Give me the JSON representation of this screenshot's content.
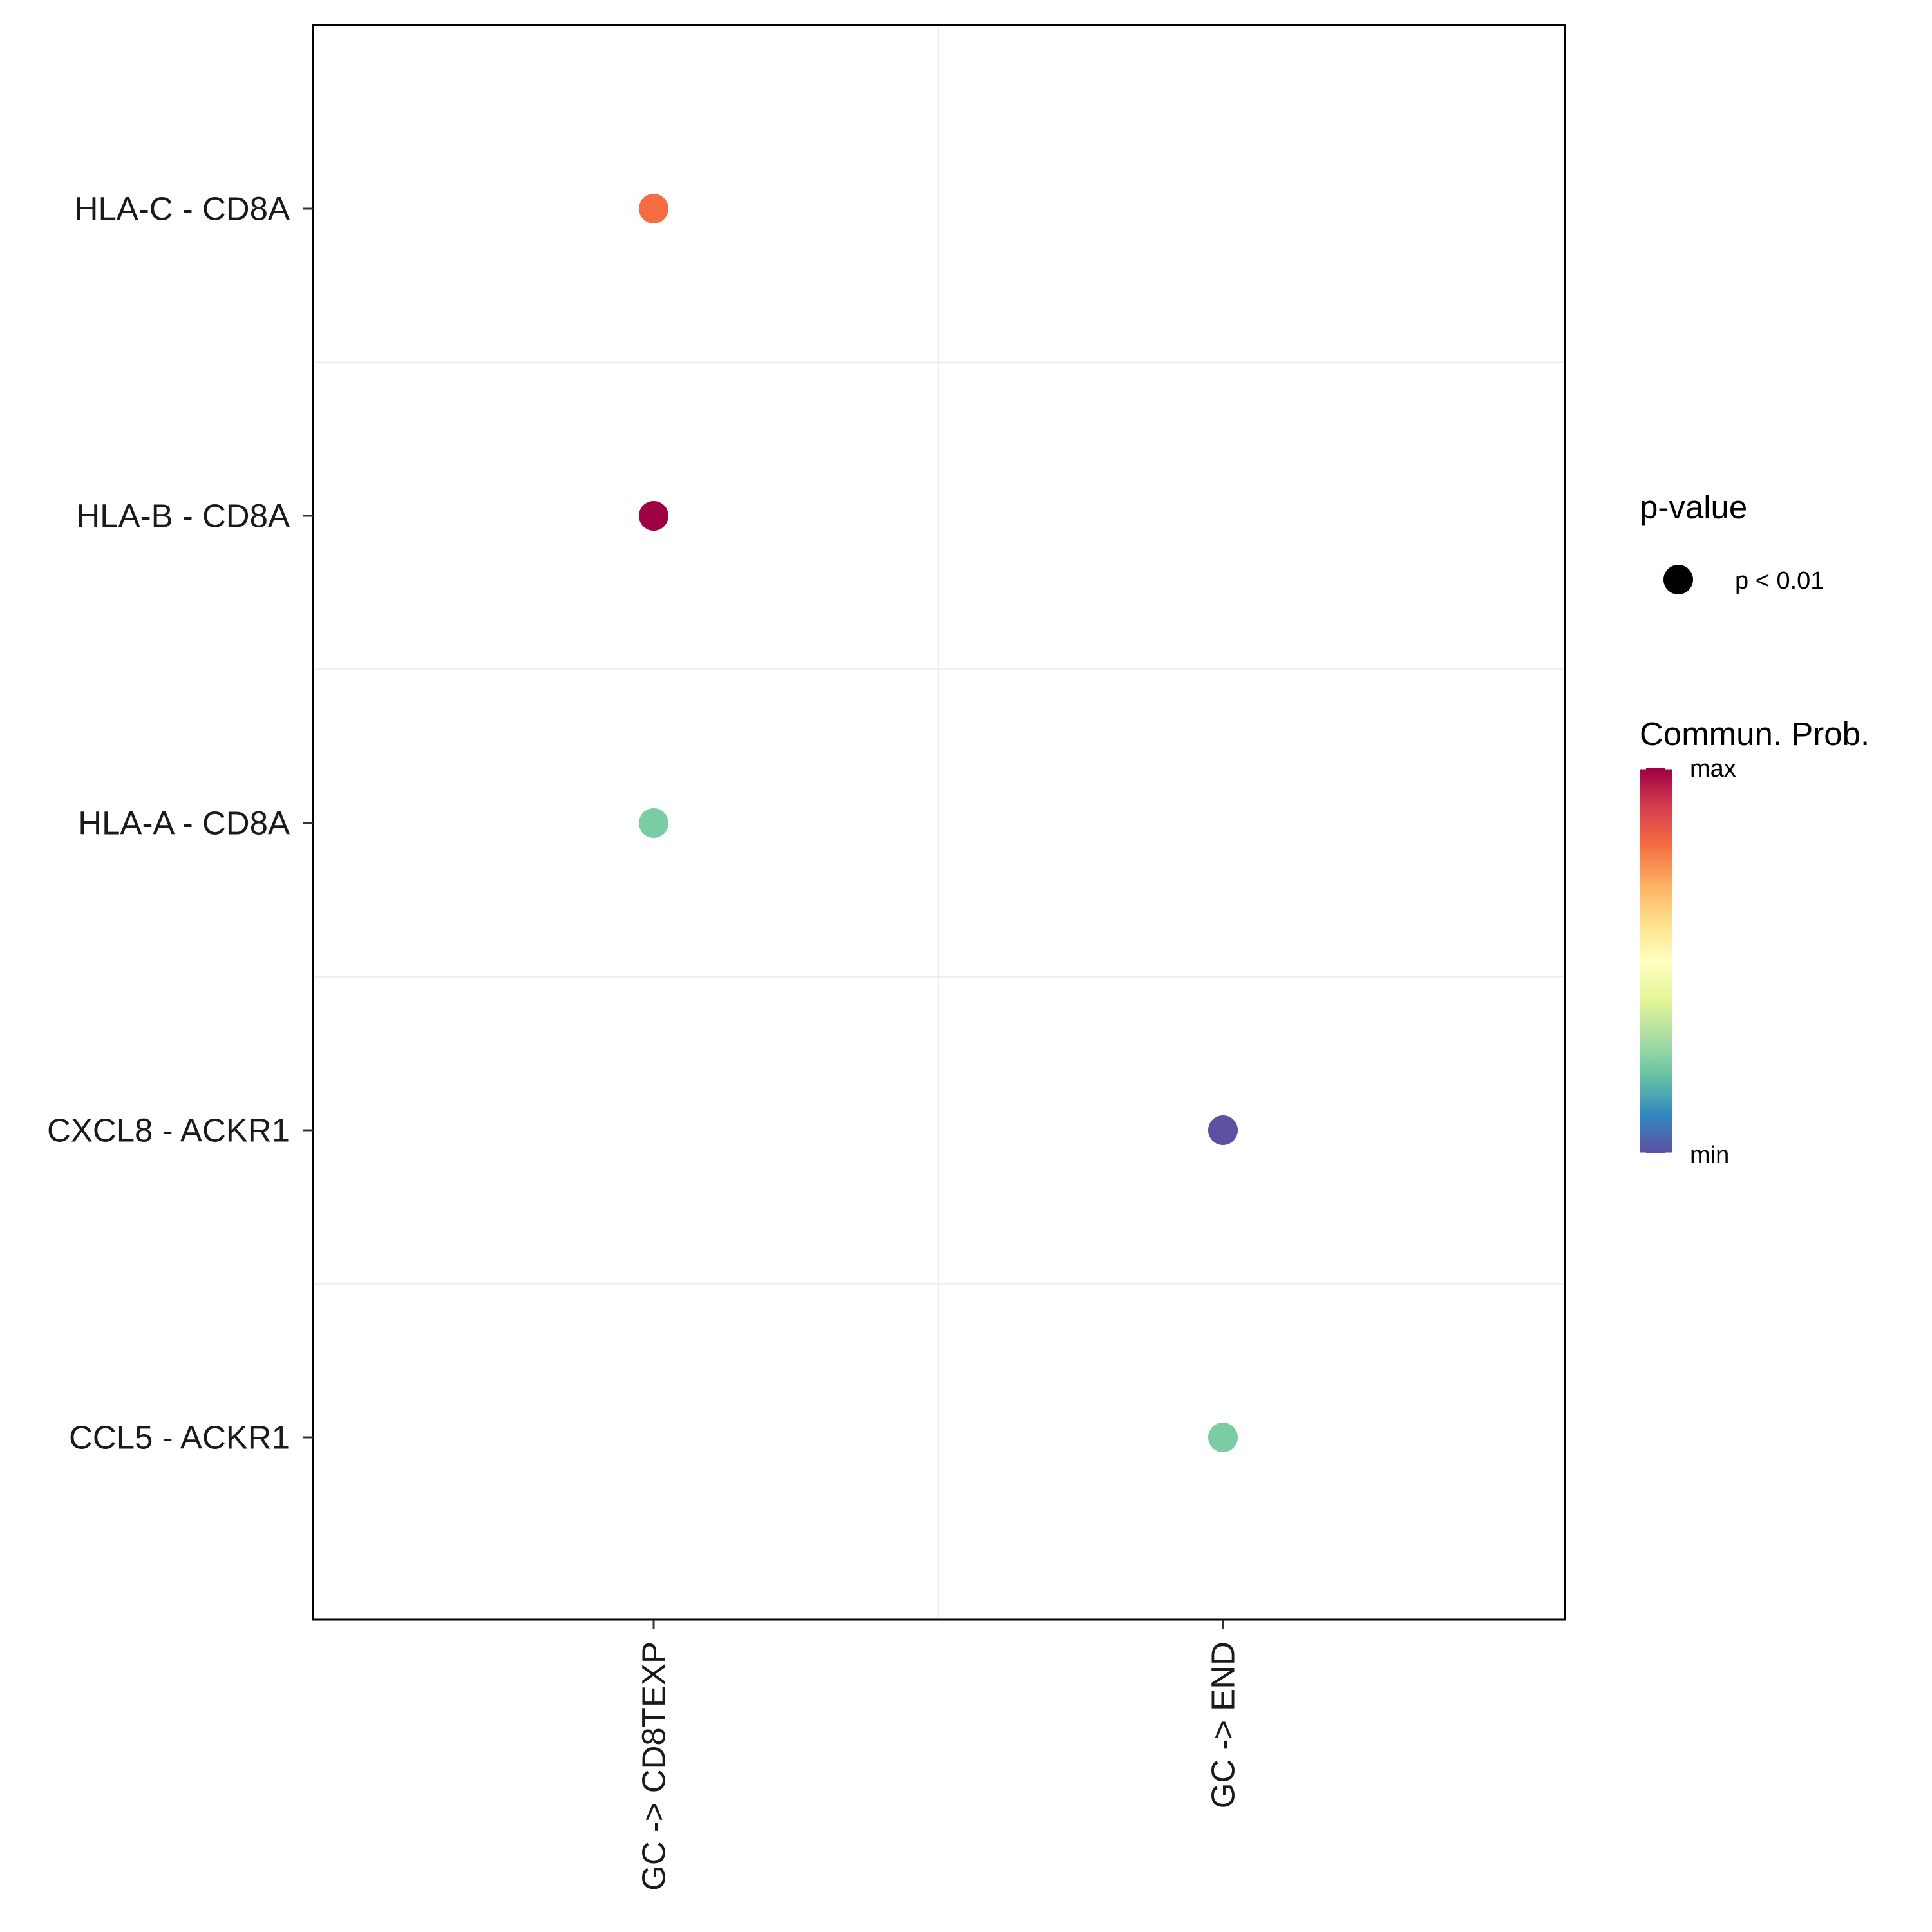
{
  "chart_data": {
    "type": "dot",
    "title": "",
    "xlabel": "",
    "ylabel": "",
    "x_categories": [
      "GC -> CD8TEXP",
      "GC -> END"
    ],
    "y_categories": [
      "HLA-C - CD8A",
      "HLA-B - CD8A",
      "HLA-A - CD8A",
      "CXCL8 - ACKR1",
      "CCL5 - ACKR1"
    ],
    "points": [
      {
        "x": "GC -> CD8TEXP",
        "y": "HLA-C - CD8A",
        "color": "#F46D43",
        "pvalue": "p < 0.01"
      },
      {
        "x": "GC -> CD8TEXP",
        "y": "HLA-B - CD8A",
        "color": "#9E0142",
        "pvalue": "p < 0.01"
      },
      {
        "x": "GC -> CD8TEXP",
        "y": "HLA-A - CD8A",
        "color": "#7ACCA4",
        "pvalue": "p < 0.01"
      },
      {
        "x": "GC -> END",
        "y": "CXCL8 - ACKR1",
        "color": "#5E4FA2",
        "pvalue": "p < 0.01"
      },
      {
        "x": "GC -> END",
        "y": "CCL5 - ACKR1",
        "color": "#7ACCA4",
        "pvalue": "p < 0.01"
      }
    ],
    "grid": true,
    "legend_position": "right",
    "size_legend": {
      "title": "p-value",
      "entries": [
        {
          "label": "p < 0.01",
          "color": "#000000"
        }
      ]
    },
    "color_legend": {
      "title": "Commun. Prob.",
      "max_label": "max",
      "min_label": "min",
      "palette": [
        "#9E0142",
        "#D53E4F",
        "#F46D43",
        "#FDAE61",
        "#FEE08B",
        "#FFFFBF",
        "#E6F598",
        "#ABDDA4",
        "#66C2A5",
        "#3288BD",
        "#5E4FA2"
      ]
    }
  }
}
